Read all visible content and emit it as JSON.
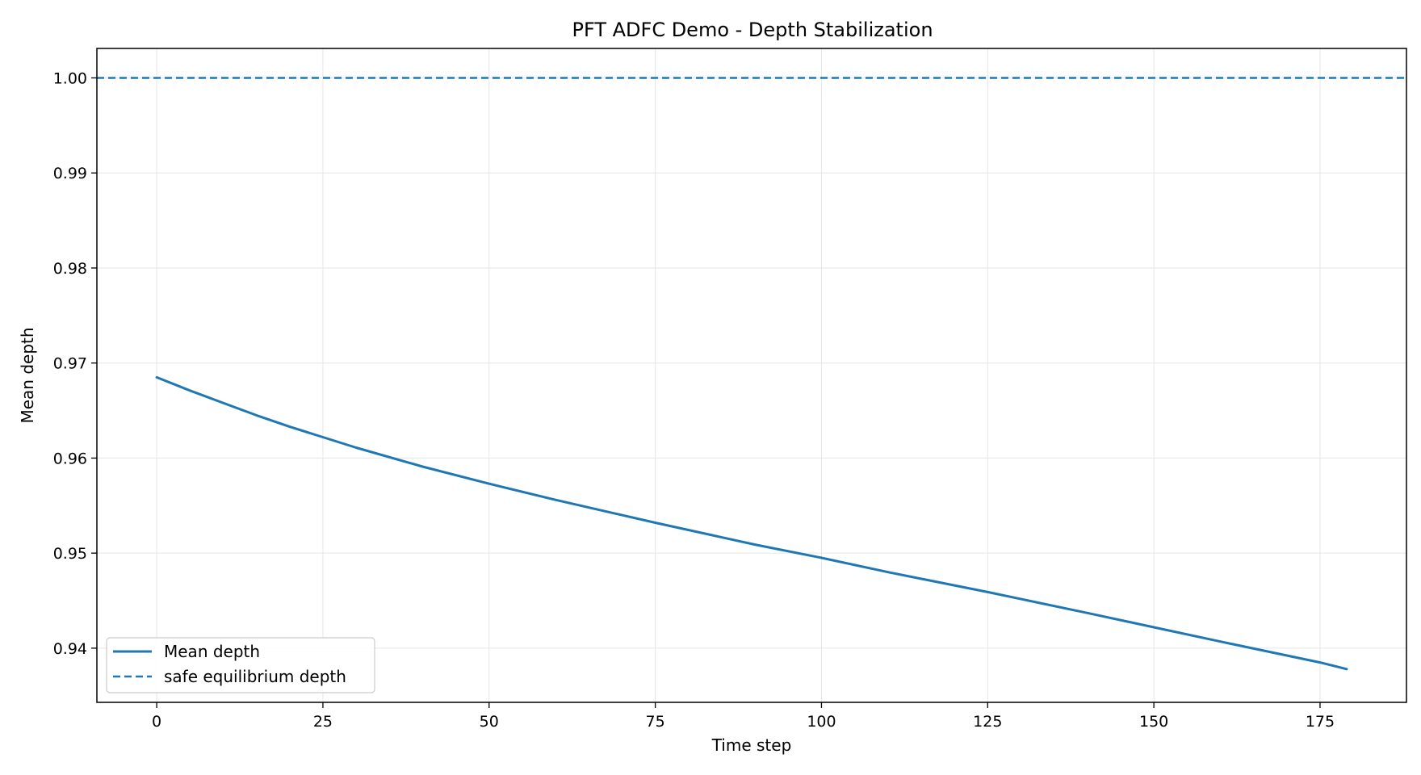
{
  "chart_data": {
    "type": "line",
    "title": "PFT ADFC Demo - Depth Stabilization",
    "xlabel": "Time step",
    "ylabel": "Mean depth",
    "xlim": [
      -9,
      188
    ],
    "ylim": [
      0.9343,
      1.0031
    ],
    "xticks": [
      0,
      25,
      50,
      75,
      100,
      125,
      150,
      175
    ],
    "yticks": [
      0.94,
      0.95,
      0.96,
      0.97,
      0.98,
      0.99,
      1.0
    ],
    "ytick_labels": [
      "0.94",
      "0.95",
      "0.96",
      "0.97",
      "0.98",
      "0.99",
      "1.00"
    ],
    "grid": true,
    "legend_position": "lower-left",
    "series": [
      {
        "name": "Mean depth",
        "style": "solid",
        "color": "#1f77b4",
        "x": [
          0,
          5,
          10,
          15,
          20,
          25,
          30,
          40,
          50,
          60,
          75,
          90,
          100,
          110,
          125,
          140,
          150,
          160,
          175,
          179
        ],
        "y": [
          0.9685,
          0.9671,
          0.9658,
          0.9645,
          0.9633,
          0.9622,
          0.9611,
          0.9591,
          0.9573,
          0.9556,
          0.9532,
          0.9509,
          0.9495,
          0.948,
          0.9459,
          0.9437,
          0.9422,
          0.9407,
          0.9385,
          0.9378
        ]
      },
      {
        "name": "safe equilibrium depth",
        "style": "dashed",
        "color": "#1f77b4",
        "x": [
          -9,
          188
        ],
        "y": [
          1.0,
          1.0
        ]
      }
    ]
  }
}
